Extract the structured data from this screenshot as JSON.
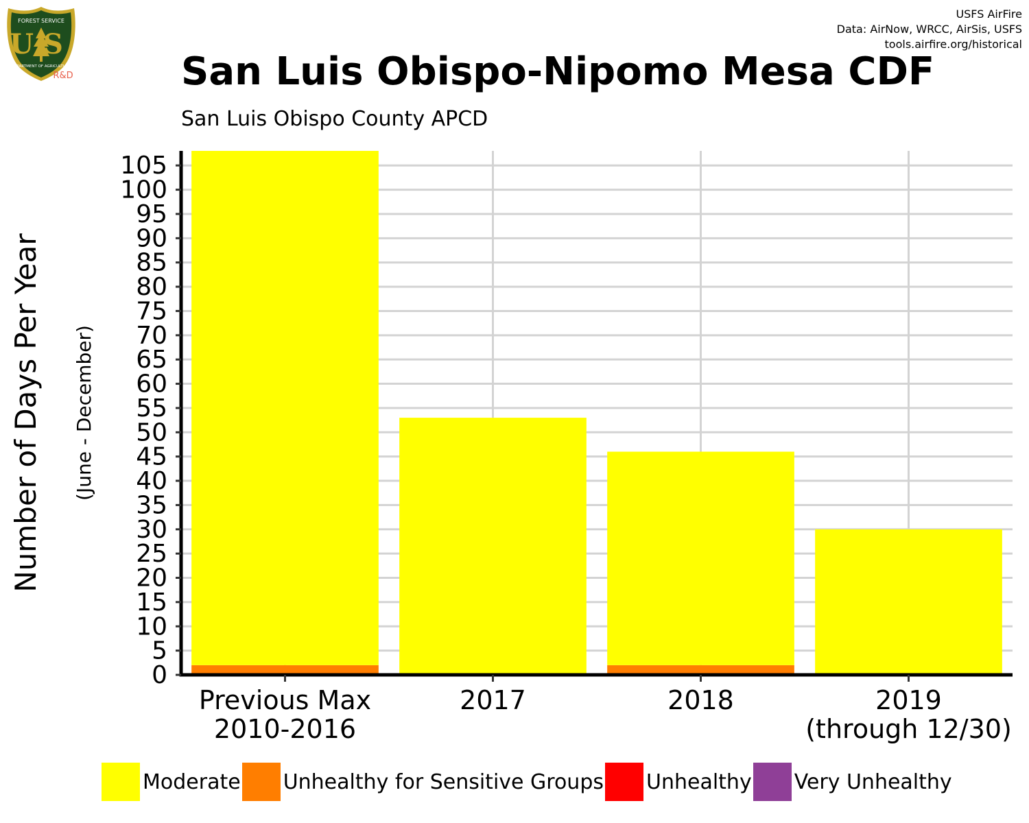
{
  "header": {
    "title": "San Luis Obispo-Nipomo Mesa CDF",
    "subtitle": "San Luis Obispo County APCD",
    "credits": [
      "USFS AirFire",
      "Data: AirNow, WRCC, AirSis, USFS",
      "tools.airfire.org/historical"
    ]
  },
  "logo": {
    "top_text": "FOREST SERVICE",
    "letters": "US",
    "bottom_text": "DEPARTMENT OF AGRICULTURE",
    "tag": "R&D",
    "icon": "usfs-shield-icon",
    "colors": {
      "shield": "#1e4d1e",
      "border": "#c9a82a",
      "tag": "#e8604c"
    }
  },
  "chart_data": {
    "type": "bar",
    "stacked": true,
    "title": "San Luis Obispo-Nipomo Mesa CDF",
    "subtitle": "San Luis Obispo County APCD",
    "xlabel": "",
    "ylabel": "Number of Days Per Year",
    "ylabel_sub": "(June - December)",
    "categories": [
      "Previous Max\n2010-2016",
      "2017",
      "2018",
      "2019\n(through 12/30)"
    ],
    "ylim": [
      0,
      108
    ],
    "yticks": [
      0,
      5,
      10,
      15,
      20,
      25,
      30,
      35,
      40,
      45,
      50,
      55,
      60,
      65,
      70,
      75,
      80,
      85,
      90,
      95,
      100,
      105
    ],
    "grid": true,
    "legend_position": "bottom",
    "series": [
      {
        "name": "Moderate",
        "color": "#ffff00",
        "values": [
          106,
          53,
          44,
          30
        ]
      },
      {
        "name": "Unhealthy for Sensitive Groups",
        "color": "#ff7e00",
        "values": [
          2,
          0,
          2,
          0
        ]
      },
      {
        "name": "Unhealthy",
        "color": "#ff0000",
        "values": [
          0,
          0,
          0,
          0
        ]
      },
      {
        "name": "Very Unhealthy",
        "color": "#8f3f97",
        "values": [
          0,
          0,
          0,
          0
        ]
      }
    ]
  }
}
